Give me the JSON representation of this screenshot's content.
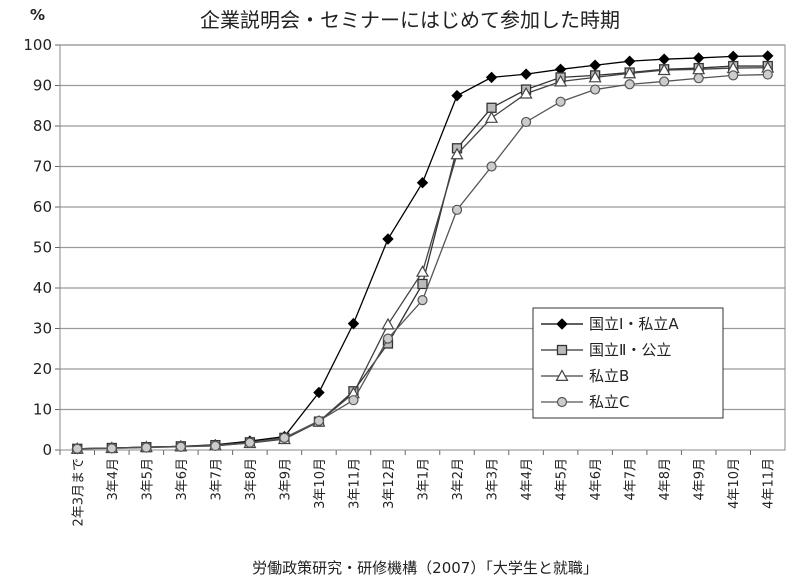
{
  "chart_data": {
    "type": "line",
    "title": "企業説明会・セミナーにはじめて参加した時期",
    "ylabel": "%",
    "xlabel": "",
    "ylim": [
      0,
      100
    ],
    "yticks": [
      0,
      10,
      20,
      30,
      40,
      50,
      60,
      70,
      80,
      90,
      100
    ],
    "grid": true,
    "legend_position": "bottom-right",
    "source": "労働政策研究・研修機構（2007）「大学生と就職」",
    "categories": [
      "2年3月まで",
      "3年4月",
      "3年5月",
      "3年6月",
      "3年7月",
      "3年8月",
      "3年9月",
      "3年10月",
      "3年11月",
      "3年12月",
      "3年1月",
      "3年2月",
      "3年3月",
      "4年4月",
      "4年5月",
      "4年6月",
      "4年7月",
      "4年8月",
      "4年9月",
      "4年10月",
      "4年11月"
    ],
    "series": [
      {
        "name": "国立Ⅰ・私立A",
        "marker": "diamond-filled",
        "color": "#000000",
        "values": [
          0.3,
          0.5,
          0.7,
          0.9,
          1.3,
          2.2,
          3.3,
          14.2,
          31.2,
          52.1,
          66.0,
          87.5,
          92.0,
          92.8,
          94.0,
          95.0,
          96.0,
          96.5,
          96.8,
          97.2,
          97.3
        ]
      },
      {
        "name": "国立Ⅱ・公立",
        "marker": "square-open",
        "color": "#333333",
        "values": [
          0.3,
          0.5,
          0.7,
          0.9,
          1.2,
          1.9,
          3.0,
          7.0,
          14.5,
          26.3,
          41.0,
          74.5,
          84.5,
          89.0,
          92.0,
          92.5,
          93.2,
          94.0,
          94.3,
          94.8,
          94.8
        ]
      },
      {
        "name": "私立B",
        "marker": "triangle-open",
        "color": "#444444",
        "values": [
          0.3,
          0.5,
          0.7,
          0.9,
          1.1,
          1.7,
          2.7,
          7.0,
          14.0,
          31.0,
          44.0,
          73.0,
          82.0,
          88.0,
          91.0,
          92.0,
          93.0,
          93.8,
          94.0,
          94.3,
          94.4
        ]
      },
      {
        "name": "私立C",
        "marker": "circle-open",
        "color": "#555555",
        "values": [
          0.3,
          0.4,
          0.6,
          0.8,
          1.0,
          1.8,
          3.0,
          7.2,
          12.3,
          27.5,
          37.0,
          59.3,
          70.0,
          81.0,
          86.0,
          89.0,
          90.3,
          91.0,
          91.8,
          92.5,
          92.7
        ]
      }
    ]
  }
}
